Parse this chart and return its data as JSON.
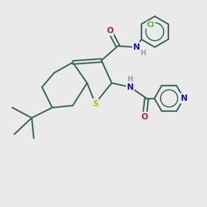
{
  "bg_color": "#eaeaea",
  "bond_color": "#3a6b5a",
  "bond_width": 1.6,
  "atom_colors": {
    "S": "#bbbb00",
    "N": "#1010cc",
    "O": "#cc2020",
    "Cl": "#44bb44",
    "C": "#3a6b5a",
    "H": "#999999"
  },
  "font_size": 8.5,
  "fig_size": [
    3.0,
    3.0
  ],
  "dpi": 100
}
